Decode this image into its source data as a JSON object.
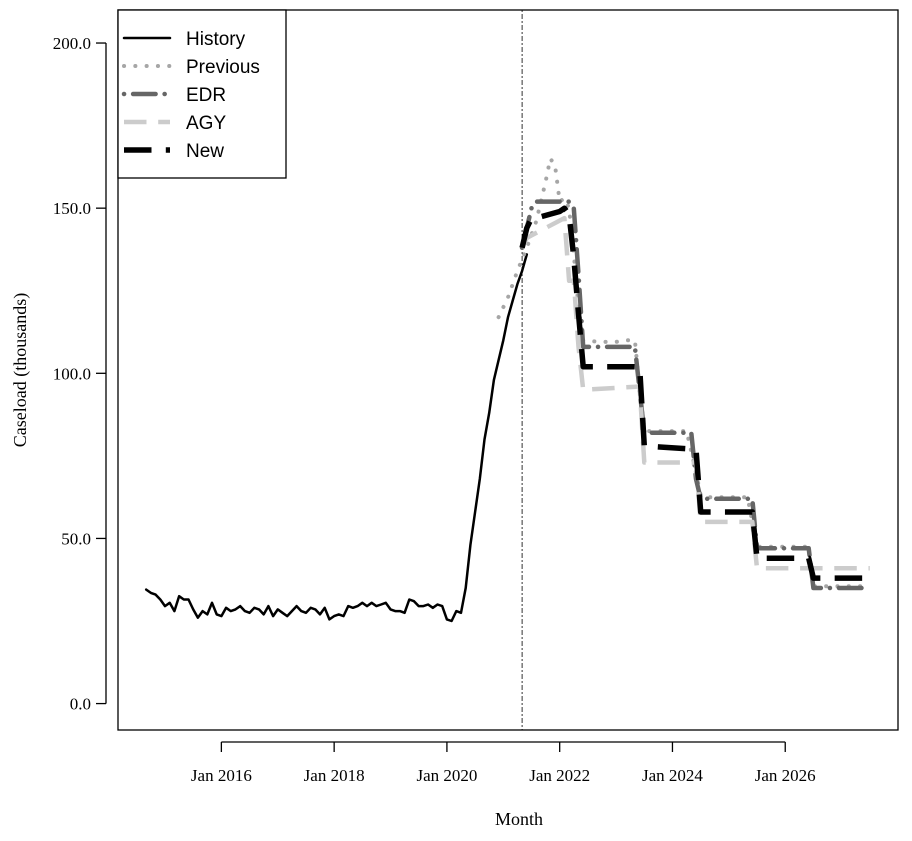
{
  "chart_data": {
    "type": "line",
    "title": "",
    "xlabel": "Month",
    "ylabel": "Caseload (thousands)",
    "xlim": [
      "2014-03",
      "2028-01"
    ],
    "ylim": [
      -8,
      210
    ],
    "grid": false,
    "legend_position": "top-left",
    "x_ticks": [
      {
        "date": "2016-01",
        "label": "Jan 2016"
      },
      {
        "date": "2018-01",
        "label": "Jan 2018"
      },
      {
        "date": "2020-01",
        "label": "Jan 2020"
      },
      {
        "date": "2022-01",
        "label": "Jan 2022"
      },
      {
        "date": "2024-01",
        "label": "Jan 2024"
      },
      {
        "date": "2026-01",
        "label": "Jan 2026"
      }
    ],
    "y_ticks": [
      {
        "value": 0,
        "label": "0.0"
      },
      {
        "value": 50,
        "label": "50.0"
      },
      {
        "value": 100,
        "label": "100.0"
      },
      {
        "value": 150,
        "label": "150.0"
      },
      {
        "value": 200,
        "label": "200.0"
      }
    ],
    "vline_date": "2021-05",
    "series": [
      {
        "name": "History",
        "color": "#000000",
        "style": "solid",
        "width": 2.5,
        "points": [
          [
            "2014-09",
            34.5
          ],
          [
            "2014-10",
            33.5
          ],
          [
            "2014-11",
            33
          ],
          [
            "2014-12",
            31.5
          ],
          [
            "2015-01",
            29.5
          ],
          [
            "2015-02",
            30.5
          ],
          [
            "2015-03",
            28
          ],
          [
            "2015-04",
            32.5
          ],
          [
            "2015-05",
            31.5
          ],
          [
            "2015-06",
            31.5
          ],
          [
            "2015-07",
            28.5
          ],
          [
            "2015-08",
            26
          ],
          [
            "2015-09",
            28
          ],
          [
            "2015-10",
            27
          ],
          [
            "2015-11",
            30.5
          ],
          [
            "2015-12",
            27
          ],
          [
            "2016-01",
            26.5
          ],
          [
            "2016-02",
            29
          ],
          [
            "2016-03",
            28
          ],
          [
            "2016-04",
            28.5
          ],
          [
            "2016-05",
            29.5
          ],
          [
            "2016-06",
            28
          ],
          [
            "2016-07",
            27.5
          ],
          [
            "2016-08",
            29
          ],
          [
            "2016-09",
            28.5
          ],
          [
            "2016-10",
            27
          ],
          [
            "2016-11",
            29.5
          ],
          [
            "2016-12",
            26.5
          ],
          [
            "2017-01",
            28.5
          ],
          [
            "2017-02",
            27.5
          ],
          [
            "2017-03",
            26.5
          ],
          [
            "2017-04",
            28
          ],
          [
            "2017-05",
            29.5
          ],
          [
            "2017-06",
            28
          ],
          [
            "2017-07",
            27.5
          ],
          [
            "2017-08",
            29
          ],
          [
            "2017-09",
            28.5
          ],
          [
            "2017-10",
            27
          ],
          [
            "2017-11",
            29
          ],
          [
            "2017-12",
            25.5
          ],
          [
            "2018-01",
            26.5
          ],
          [
            "2018-02",
            27
          ],
          [
            "2018-03",
            26.5
          ],
          [
            "2018-04",
            29.5
          ],
          [
            "2018-05",
            29
          ],
          [
            "2018-06",
            29.5
          ],
          [
            "2018-07",
            30.5
          ],
          [
            "2018-08",
            29.5
          ],
          [
            "2018-09",
            30.5
          ],
          [
            "2018-10",
            29.5
          ],
          [
            "2018-11",
            30
          ],
          [
            "2018-12",
            30.5
          ],
          [
            "2019-01",
            28.5
          ],
          [
            "2019-02",
            28
          ],
          [
            "2019-03",
            28
          ],
          [
            "2019-04",
            27.5
          ],
          [
            "2019-05",
            31.5
          ],
          [
            "2019-06",
            31
          ],
          [
            "2019-07",
            29.5
          ],
          [
            "2019-08",
            29.5
          ],
          [
            "2019-09",
            30
          ],
          [
            "2019-10",
            29
          ],
          [
            "2019-11",
            30
          ],
          [
            "2019-12",
            29.5
          ],
          [
            "2020-01",
            25.5
          ],
          [
            "2020-02",
            25
          ],
          [
            "2020-03",
            28
          ],
          [
            "2020-04",
            27.5
          ],
          [
            "2020-05",
            35
          ],
          [
            "2020-06",
            48
          ],
          [
            "2020-07",
            58
          ],
          [
            "2020-08",
            68
          ],
          [
            "2020-09",
            80
          ],
          [
            "2020-10",
            88
          ],
          [
            "2020-11",
            98
          ],
          [
            "2020-12",
            104
          ],
          [
            "2021-01",
            110
          ],
          [
            "2021-02",
            117
          ],
          [
            "2021-03",
            122
          ],
          [
            "2021-04",
            127
          ],
          [
            "2021-05",
            131
          ],
          [
            "2021-06",
            136
          ]
        ]
      },
      {
        "name": "Previous",
        "color": "#a6a6a6",
        "style": "dotted",
        "width": 4,
        "points": [
          [
            "2020-12",
            117
          ],
          [
            "2021-02",
            123
          ],
          [
            "2021-04",
            131
          ],
          [
            "2021-06",
            138
          ],
          [
            "2021-08",
            146
          ],
          [
            "2021-09",
            152
          ],
          [
            "2021-10",
            158
          ],
          [
            "2021-11",
            165
          ],
          [
            "2021-12",
            163
          ],
          [
            "2022-01",
            152
          ],
          [
            "2022-02",
            153
          ],
          [
            "2022-03",
            150
          ],
          [
            "2022-04",
            136
          ],
          [
            "2022-05",
            120
          ],
          [
            "2022-06",
            110
          ],
          [
            "2022-07",
            110
          ],
          [
            "2022-09",
            109.5
          ],
          [
            "2022-11",
            109.5
          ],
          [
            "2023-01",
            109.5
          ],
          [
            "2023-03",
            110
          ],
          [
            "2023-05",
            110
          ],
          [
            "2023-06",
            95
          ],
          [
            "2023-07",
            83
          ],
          [
            "2023-08",
            82.5
          ],
          [
            "2023-10",
            82.5
          ],
          [
            "2023-12",
            82.5
          ],
          [
            "2024-02",
            82.5
          ],
          [
            "2024-04",
            82.5
          ],
          [
            "2024-06",
            70
          ],
          [
            "2024-07",
            63
          ],
          [
            "2024-09",
            62.5
          ],
          [
            "2024-11",
            62.5
          ],
          [
            "2025-01",
            62.5
          ],
          [
            "2025-03",
            62.5
          ],
          [
            "2025-05",
            62.5
          ],
          [
            "2025-07",
            47.5
          ],
          [
            "2025-09",
            47.5
          ],
          [
            "2025-11",
            47.5
          ],
          [
            "2026-01",
            47.5
          ],
          [
            "2026-03",
            47.5
          ],
          [
            "2026-06",
            47.5
          ],
          [
            "2026-07",
            35.5
          ],
          [
            "2026-10",
            35.5
          ],
          [
            "2027-01",
            35.5
          ],
          [
            "2027-04",
            35.5
          ],
          [
            "2027-07",
            35.5
          ]
        ]
      },
      {
        "name": "EDR",
        "color": "#666666",
        "style": "dotdash",
        "width": 4.5,
        "points": [
          [
            "2021-05",
            138
          ],
          [
            "2021-06",
            144
          ],
          [
            "2021-07",
            150
          ],
          [
            "2021-08",
            152
          ],
          [
            "2021-12",
            152
          ],
          [
            "2022-01",
            152
          ],
          [
            "2022-03",
            152
          ],
          [
            "2022-04",
            150
          ],
          [
            "2022-05",
            130
          ],
          [
            "2022-06",
            108
          ],
          [
            "2022-07",
            108
          ],
          [
            "2023-05",
            108
          ],
          [
            "2023-06",
            95
          ],
          [
            "2023-07",
            82
          ],
          [
            "2024-05",
            82
          ],
          [
            "2024-06",
            68
          ],
          [
            "2024-07",
            62
          ],
          [
            "2025-06",
            62
          ],
          [
            "2025-07",
            47
          ],
          [
            "2026-06",
            47
          ],
          [
            "2026-07",
            35
          ],
          [
            "2027-07",
            35
          ]
        ]
      },
      {
        "name": "AGY",
        "color": "#cccccc",
        "style": "dashed",
        "width": 4.5,
        "points": [
          [
            "2021-05",
            138
          ],
          [
            "2021-06",
            141
          ],
          [
            "2022-02",
            147
          ],
          [
            "2022-03",
            128
          ],
          [
            "2022-04",
            128
          ],
          [
            "2022-05",
            108
          ],
          [
            "2022-06",
            95
          ],
          [
            "2023-06",
            96
          ],
          [
            "2023-07",
            73
          ],
          [
            "2024-06",
            73
          ],
          [
            "2024-07",
            55
          ],
          [
            "2025-06",
            55
          ],
          [
            "2025-07",
            41
          ],
          [
            "2027-07",
            41
          ]
        ]
      },
      {
        "name": "New",
        "color": "#000000",
        "style": "dashed",
        "width": 5.5,
        "points": [
          [
            "2021-05",
            138
          ],
          [
            "2021-06",
            144
          ],
          [
            "2021-07",
            147
          ],
          [
            "2021-08",
            147
          ],
          [
            "2022-01",
            149
          ],
          [
            "2022-02",
            150
          ],
          [
            "2022-03",
            148
          ],
          [
            "2022-04",
            135
          ],
          [
            "2022-05",
            118
          ],
          [
            "2022-06",
            102
          ],
          [
            "2023-06",
            102
          ],
          [
            "2023-07",
            78
          ],
          [
            "2024-06",
            77
          ],
          [
            "2024-07",
            58
          ],
          [
            "2025-06",
            58
          ],
          [
            "2025-07",
            44
          ],
          [
            "2026-06",
            44
          ],
          [
            "2026-07",
            38
          ],
          [
            "2027-07",
            38
          ]
        ]
      }
    ]
  }
}
